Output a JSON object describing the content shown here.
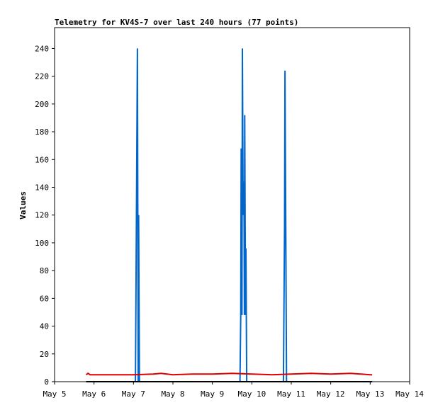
{
  "chart_data": {
    "type": "line",
    "title": "Telemetry for KV4S-7 over last 240 hours (77 points)",
    "xlabel": "",
    "ylabel": "Values",
    "xlim": [
      "May 5",
      "May 14"
    ],
    "ylim": [
      0,
      255
    ],
    "grid": false,
    "legend": "none",
    "x_ticks": [
      "May 5",
      "May 6",
      "May 7",
      "May 8",
      "May 9",
      "May 10",
      "May 11",
      "May 12",
      "May 13",
      "May 14"
    ],
    "y_ticks": [
      "0",
      "20",
      "40",
      "60",
      "80",
      "100",
      "120",
      "140",
      "160",
      "180",
      "200",
      "220",
      "240"
    ],
    "y_tick_values": [
      0,
      20,
      40,
      60,
      80,
      100,
      120,
      140,
      160,
      180,
      200,
      220,
      240
    ],
    "series": [
      {
        "color": "#0066cc",
        "points": [
          [
            0.8,
            0
          ],
          [
            2.05,
            0
          ],
          [
            2.1,
            240
          ],
          [
            2.12,
            0
          ],
          [
            2.13,
            120
          ],
          [
            2.15,
            0
          ],
          [
            4.7,
            0
          ],
          [
            4.72,
            48
          ],
          [
            4.73,
            168
          ],
          [
            4.75,
            48
          ],
          [
            4.76,
            240
          ],
          [
            4.78,
            120
          ],
          [
            4.8,
            144
          ],
          [
            4.81,
            48
          ],
          [
            4.82,
            192
          ],
          [
            4.84,
            48
          ],
          [
            4.85,
            96
          ],
          [
            4.87,
            0
          ],
          [
            5.8,
            0
          ],
          [
            5.83,
            112
          ],
          [
            5.84,
            224
          ],
          [
            5.86,
            112
          ],
          [
            5.88,
            0
          ],
          [
            8.05,
            0
          ]
        ]
      },
      {
        "color": "#dd0000",
        "points": [
          [
            0.8,
            5
          ],
          [
            0.85,
            6
          ],
          [
            0.9,
            5
          ],
          [
            2.0,
            5
          ],
          [
            2.5,
            5.5
          ],
          [
            2.7,
            6
          ],
          [
            3.0,
            5
          ],
          [
            3.5,
            5.5
          ],
          [
            4.0,
            5.5
          ],
          [
            4.5,
            6
          ],
          [
            5.0,
            5.5
          ],
          [
            5.5,
            5
          ],
          [
            6.0,
            5.5
          ],
          [
            6.5,
            6
          ],
          [
            7.0,
            5.5
          ],
          [
            7.5,
            6
          ],
          [
            8.0,
            5
          ],
          [
            8.05,
            5
          ]
        ]
      },
      {
        "color": "#000000",
        "points": [
          [
            0.8,
            0
          ],
          [
            8.05,
            0
          ]
        ]
      }
    ]
  }
}
